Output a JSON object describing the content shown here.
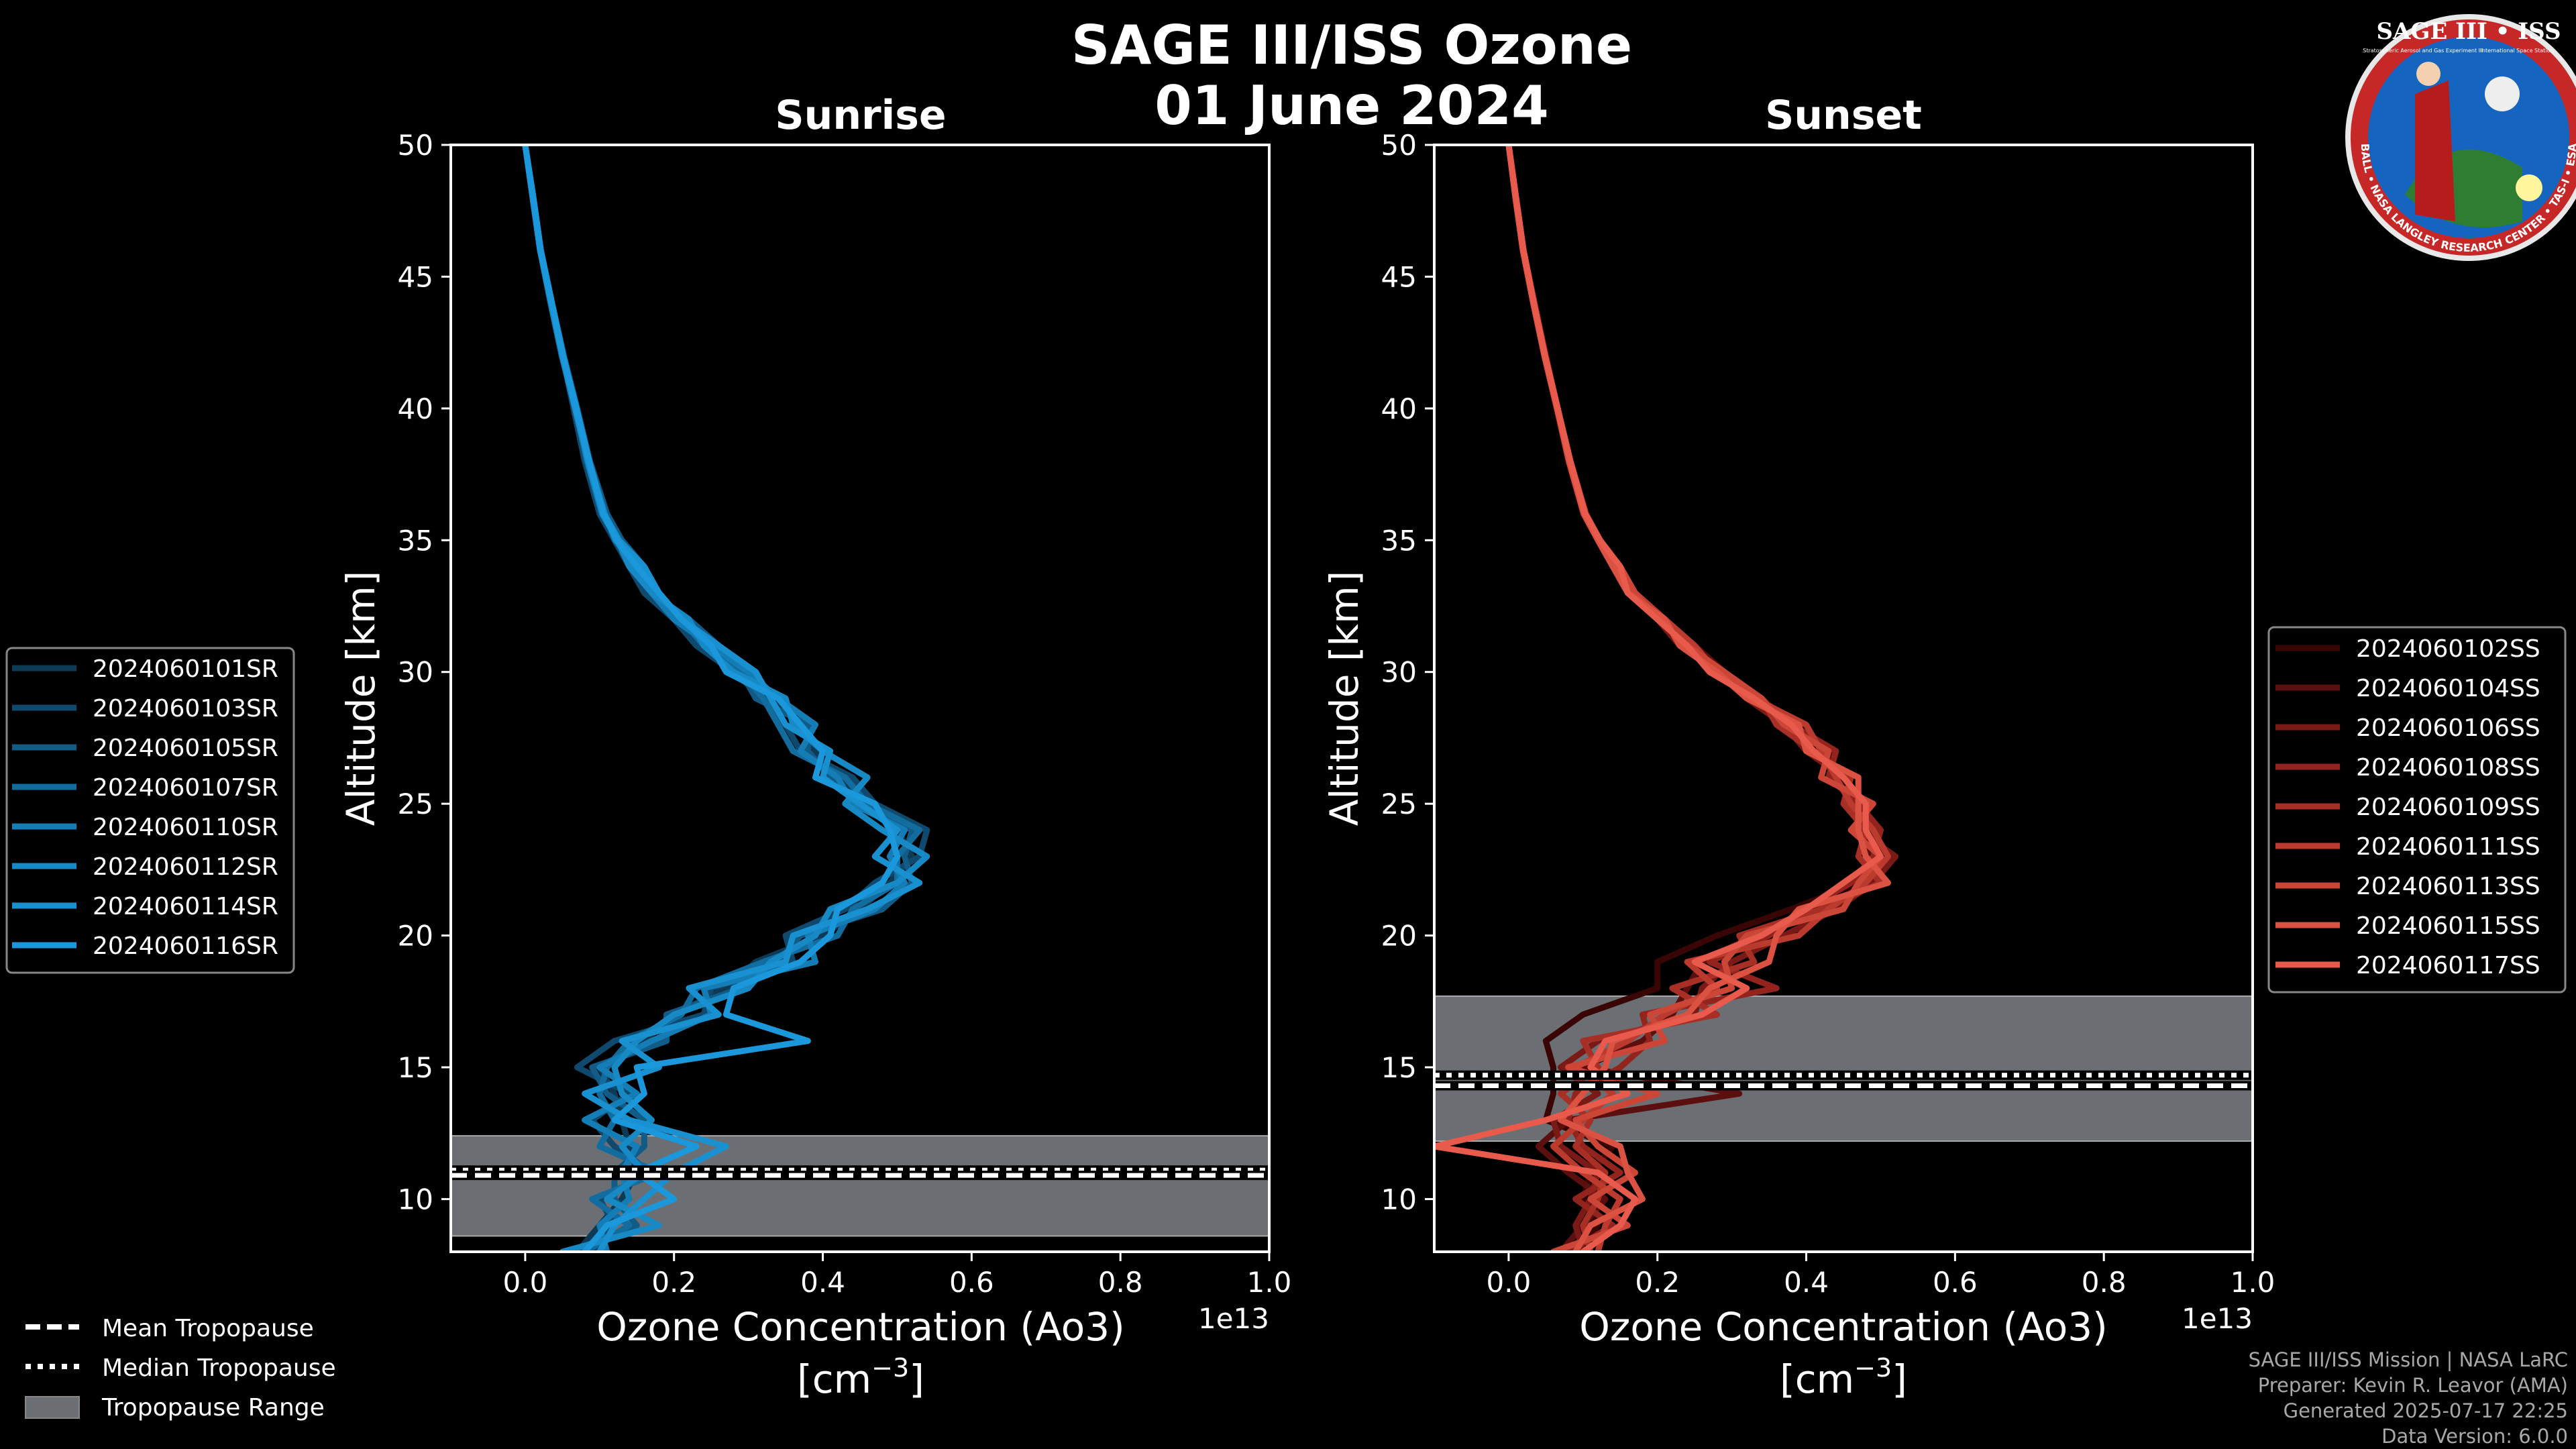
{
  "title_line1": "SAGE III/ISS Ozone",
  "title_line2": "01 June 2024",
  "logo": {
    "text_top": "SAGE III • ISS",
    "ring_text": "BALL • NASA LANGLEY RESEARCH CENTER • TAS-I • ESA",
    "sub_left": "Stratospheric Aerosol and Gas Experiment III",
    "sub_right": "International Space Station"
  },
  "colors": {
    "sunrise": [
      "#0d3a55",
      "#0f4a6e",
      "#115b86",
      "#136c9e",
      "#157db6",
      "#1789c4",
      "#1991d0",
      "#1b98db"
    ],
    "sunset": [
      "#3a0505",
      "#5c0f0f",
      "#7a1a16",
      "#93241d",
      "#a82f25",
      "#bb3a2e",
      "#cc4638",
      "#db5142",
      "#e85a4b"
    ],
    "trop_band": "#6b6e72"
  },
  "chart_data": [
    {
      "type": "line",
      "panel": "sunrise",
      "title": "Sunrise",
      "xlabel": "Ozone Concentration (Ao3)",
      "xlabel_units_prefix": "[cm",
      "xlabel_units_exp": "−3",
      "xlabel_units_suffix": "]",
      "ylabel": "Altitude [km]",
      "x_scale_label": "1e13",
      "xlim": [
        -0.1,
        1.0
      ],
      "ylim": [
        8,
        50
      ],
      "xticks": [
        "0.0",
        "0.2",
        "0.4",
        "0.6",
        "0.8",
        "1.0"
      ],
      "yticks": [
        "10",
        "15",
        "20",
        "25",
        "30",
        "35",
        "40",
        "45",
        "50"
      ],
      "tropopause": {
        "mean": 10.9,
        "median": 11.1,
        "range": [
          8.6,
          12.4
        ]
      },
      "series_names": [
        "2024060101SR",
        "2024060103SR",
        "2024060105SR",
        "2024060107SR",
        "2024060110SR",
        "2024060112SR",
        "2024060114SR",
        "2024060116SR"
      ],
      "altitudes": [
        8,
        9,
        10,
        11,
        12,
        13,
        14,
        15,
        16,
        17,
        18,
        19,
        20,
        21,
        22,
        23,
        24,
        25,
        26,
        27,
        28,
        29,
        30,
        31,
        32,
        33,
        34,
        35,
        36,
        38,
        40,
        42,
        44,
        46,
        48,
        50
      ],
      "series_values": [
        [
          0.07,
          0.1,
          0.13,
          0.15,
          0.14,
          0.13,
          0.12,
          0.1,
          0.16,
          0.2,
          0.27,
          0.31,
          0.4,
          0.45,
          0.49,
          0.52,
          0.5,
          0.46,
          0.42,
          0.39,
          0.37,
          0.33,
          0.3,
          0.25,
          0.21,
          0.18,
          0.15,
          0.12,
          0.105,
          0.085,
          0.068,
          0.05,
          0.035,
          0.02,
          0.01,
          0.0
        ],
        [
          0.09,
          0.12,
          0.1,
          0.17,
          0.12,
          0.09,
          0.14,
          0.07,
          0.12,
          0.24,
          0.25,
          0.36,
          0.35,
          0.43,
          0.47,
          0.53,
          0.54,
          0.47,
          0.44,
          0.37,
          0.35,
          0.32,
          0.28,
          0.23,
          0.2,
          0.16,
          0.14,
          0.12,
          0.1,
          0.08,
          0.065,
          0.05,
          0.035,
          0.02,
          0.01,
          0.0
        ],
        [
          0.06,
          0.15,
          0.12,
          0.12,
          0.16,
          0.16,
          0.11,
          0.09,
          0.19,
          0.19,
          0.29,
          0.34,
          0.37,
          0.48,
          0.52,
          0.51,
          0.52,
          0.45,
          0.41,
          0.38,
          0.38,
          0.31,
          0.29,
          0.26,
          0.22,
          0.17,
          0.16,
          0.13,
          0.11,
          0.087,
          0.07,
          0.052,
          0.036,
          0.021,
          0.011,
          0.0
        ],
        [
          0.08,
          0.14,
          0.09,
          0.18,
          0.1,
          0.12,
          0.1,
          0.11,
          0.14,
          0.21,
          0.23,
          0.32,
          0.42,
          0.44,
          0.5,
          0.5,
          0.53,
          0.46,
          0.43,
          0.36,
          0.34,
          0.32,
          0.29,
          0.24,
          0.21,
          0.18,
          0.15,
          0.125,
          0.103,
          0.083,
          0.067,
          0.049,
          0.034,
          0.02,
          0.01,
          0.0
        ],
        [
          0.11,
          0.1,
          0.14,
          0.13,
          0.15,
          0.08,
          0.15,
          0.1,
          0.17,
          0.25,
          0.24,
          0.39,
          0.38,
          0.47,
          0.51,
          0.49,
          0.51,
          0.44,
          0.42,
          0.37,
          0.39,
          0.34,
          0.3,
          0.25,
          0.2,
          0.17,
          0.15,
          0.121,
          0.107,
          0.086,
          0.068,
          0.051,
          0.036,
          0.021,
          0.011,
          0.0
        ],
        [
          0.05,
          0.18,
          0.11,
          0.16,
          0.13,
          0.17,
          0.13,
          0.12,
          0.15,
          0.2,
          0.3,
          0.33,
          0.39,
          0.41,
          0.5,
          0.54,
          0.48,
          0.43,
          0.46,
          0.4,
          0.36,
          0.35,
          0.28,
          0.24,
          0.22,
          0.17,
          0.14,
          0.124,
          0.104,
          0.084,
          0.069,
          0.05,
          0.035,
          0.02,
          0.01,
          0.0
        ],
        [
          0.1,
          0.12,
          0.16,
          0.2,
          0.27,
          0.14,
          0.08,
          0.18,
          0.13,
          0.26,
          0.22,
          0.35,
          0.36,
          0.46,
          0.53,
          0.47,
          0.5,
          0.45,
          0.4,
          0.41,
          0.35,
          0.33,
          0.31,
          0.26,
          0.21,
          0.18,
          0.16,
          0.126,
          0.106,
          0.085,
          0.067,
          0.05,
          0.035,
          0.02,
          0.01,
          0.0
        ],
        [
          0.08,
          0.11,
          0.2,
          0.15,
          0.23,
          0.12,
          0.16,
          0.15,
          0.38,
          0.27,
          0.28,
          0.37,
          0.41,
          0.42,
          0.48,
          0.5,
          0.49,
          0.47,
          0.39,
          0.4,
          0.37,
          0.34,
          0.27,
          0.25,
          0.21,
          0.18,
          0.15,
          0.123,
          0.105,
          0.086,
          0.069,
          0.051,
          0.036,
          0.021,
          0.011,
          0.0
        ]
      ]
    },
    {
      "type": "line",
      "panel": "sunset",
      "title": "Sunset",
      "xlabel": "Ozone Concentration (Ao3)",
      "xlabel_units_prefix": "[cm",
      "xlabel_units_exp": "−3",
      "xlabel_units_suffix": "]",
      "ylabel": "Altitude [km]",
      "x_scale_label": "1e13",
      "xlim": [
        -0.1,
        1.0
      ],
      "ylim": [
        8,
        50
      ],
      "xticks": [
        "0.0",
        "0.2",
        "0.4",
        "0.6",
        "0.8",
        "1.0"
      ],
      "yticks": [
        "10",
        "15",
        "20",
        "25",
        "30",
        "35",
        "40",
        "45",
        "50"
      ],
      "tropopause": {
        "mean": 14.3,
        "median": 14.7,
        "range": [
          12.2,
          17.7
        ]
      },
      "series_names": [
        "2024060102SS",
        "2024060104SS",
        "2024060106SS",
        "2024060108SS",
        "2024060109SS",
        "2024060111SS",
        "2024060113SS",
        "2024060115SS",
        "2024060117SS"
      ],
      "altitudes": [
        8,
        9,
        10,
        11,
        12,
        13,
        14,
        15,
        16,
        17,
        18,
        19,
        20,
        21,
        22,
        23,
        24,
        25,
        26,
        27,
        28,
        29,
        30,
        31,
        32,
        33,
        34,
        35,
        36,
        38,
        40,
        42,
        44,
        46,
        48,
        50
      ],
      "series_values": [
        [
          0.09,
          0.12,
          0.1,
          0.11,
          0.14,
          0.05,
          0.06,
          0.06,
          0.05,
          0.1,
          0.2,
          0.2,
          0.28,
          0.38,
          0.47,
          0.5,
          0.49,
          0.47,
          0.45,
          0.42,
          0.39,
          0.33,
          0.28,
          0.24,
          0.2,
          0.16,
          0.14,
          0.12,
          0.1,
          0.08,
          0.064,
          0.048,
          0.033,
          0.019,
          0.009,
          0.0
        ],
        [
          0.07,
          0.1,
          0.13,
          0.08,
          0.04,
          0.08,
          0.31,
          0.1,
          0.18,
          0.22,
          0.24,
          0.26,
          0.33,
          0.41,
          0.49,
          0.48,
          0.5,
          0.46,
          0.44,
          0.43,
          0.38,
          0.34,
          0.29,
          0.25,
          0.21,
          0.17,
          0.14,
          0.121,
          0.102,
          0.081,
          0.065,
          0.049,
          0.034,
          0.02,
          0.01,
          0.0
        ],
        [
          0.1,
          0.09,
          0.11,
          0.12,
          0.07,
          0.06,
          0.12,
          0.07,
          0.12,
          0.25,
          0.26,
          0.3,
          0.37,
          0.44,
          0.49,
          0.52,
          0.47,
          0.48,
          0.45,
          0.4,
          0.37,
          0.32,
          0.28,
          0.23,
          0.2,
          0.17,
          0.15,
          0.122,
          0.103,
          0.082,
          0.066,
          0.05,
          0.035,
          0.02,
          0.01,
          0.0
        ],
        [
          0.08,
          0.14,
          0.09,
          0.15,
          0.1,
          0.08,
          0.09,
          0.15,
          0.19,
          0.18,
          0.36,
          0.27,
          0.35,
          0.4,
          0.46,
          0.49,
          0.5,
          0.47,
          0.43,
          0.44,
          0.38,
          0.33,
          0.29,
          0.24,
          0.21,
          0.17,
          0.14,
          0.12,
          0.101,
          0.081,
          0.065,
          0.048,
          0.034,
          0.02,
          0.01,
          0.0
        ],
        [
          0.11,
          0.1,
          0.12,
          0.13,
          0.09,
          0.11,
          0.07,
          0.12,
          0.1,
          0.28,
          0.22,
          0.33,
          0.31,
          0.42,
          0.5,
          0.47,
          0.48,
          0.45,
          0.46,
          0.41,
          0.36,
          0.34,
          0.27,
          0.24,
          0.2,
          0.16,
          0.15,
          0.123,
          0.104,
          0.083,
          0.066,
          0.049,
          0.034,
          0.02,
          0.01,
          0.0
        ],
        [
          0.12,
          0.13,
          0.15,
          0.1,
          0.06,
          0.1,
          0.14,
          0.09,
          0.16,
          0.21,
          0.28,
          0.24,
          0.39,
          0.43,
          0.48,
          0.51,
          0.49,
          0.46,
          0.44,
          0.42,
          0.4,
          0.33,
          0.28,
          0.25,
          0.21,
          0.17,
          0.14,
          0.121,
          0.102,
          0.082,
          0.066,
          0.049,
          0.034,
          0.02,
          0.01,
          0.0
        ],
        [
          0.06,
          0.16,
          0.11,
          0.17,
          0.12,
          0.09,
          0.2,
          0.08,
          0.21,
          0.19,
          0.3,
          0.29,
          0.32,
          0.45,
          0.47,
          0.5,
          0.46,
          0.49,
          0.42,
          0.43,
          0.37,
          0.34,
          0.29,
          0.24,
          0.2,
          0.17,
          0.15,
          0.122,
          0.103,
          0.082,
          0.065,
          0.049,
          0.034,
          0.02,
          0.01,
          0.0
        ],
        [
          0.09,
          0.11,
          0.18,
          0.16,
          0.15,
          0.07,
          0.1,
          0.13,
          0.14,
          0.24,
          0.27,
          0.35,
          0.36,
          0.39,
          0.51,
          0.48,
          0.47,
          0.47,
          0.47,
          0.4,
          0.39,
          0.32,
          0.28,
          0.23,
          0.21,
          0.16,
          0.14,
          0.12,
          0.101,
          0.081,
          0.065,
          0.048,
          0.033,
          0.019,
          0.009,
          0.0
        ],
        [
          0.1,
          0.15,
          0.17,
          0.12,
          -0.1,
          0.05,
          0.16,
          0.11,
          0.13,
          0.26,
          0.32,
          0.25,
          0.34,
          0.4,
          0.45,
          0.5,
          0.48,
          0.48,
          0.45,
          0.41,
          0.38,
          0.33,
          0.27,
          0.24,
          0.2,
          0.16,
          0.15,
          0.123,
          0.103,
          0.083,
          0.066,
          0.049,
          0.034,
          0.02,
          0.01,
          0.0
        ]
      ]
    }
  ],
  "legend_trop": {
    "mean": "Mean Tropopause",
    "median": "Median Tropopause",
    "range": "Tropopause Range"
  },
  "footer": [
    "SAGE III/ISS Mission | NASA LaRC",
    "Preparer: Kevin R. Leavor (AMA)",
    "Generated 2025-07-17 22:25",
    "Data Version: 6.0.0"
  ]
}
